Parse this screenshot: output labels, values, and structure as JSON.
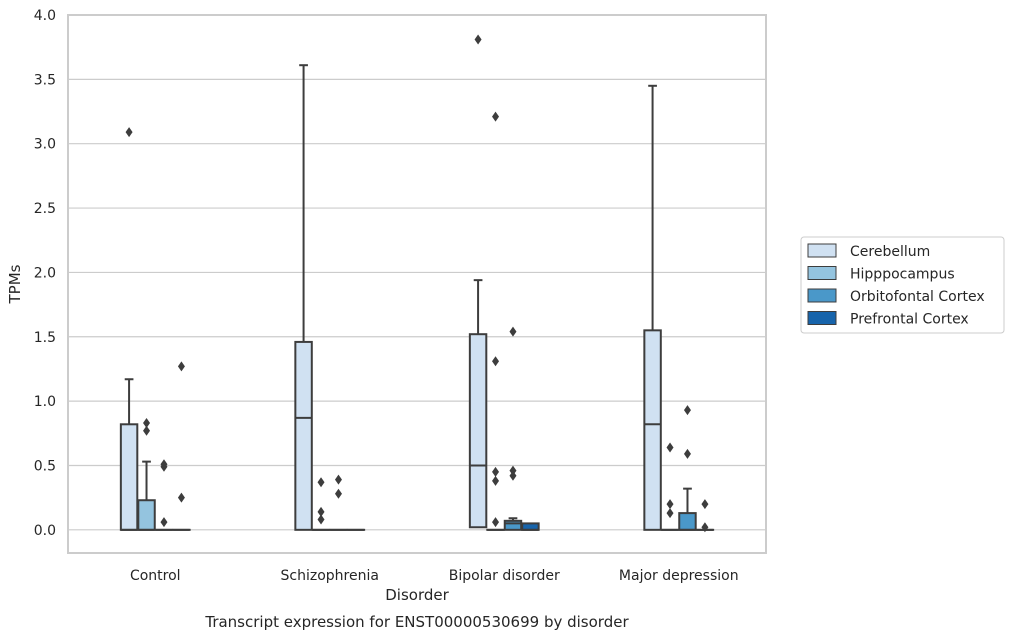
{
  "chart_data": {
    "type": "box",
    "title": "",
    "caption": "Transcript expression for ENST00000530699 by disorder",
    "xlabel": "Disorder",
    "ylabel": "TPMs",
    "ylim": [
      -0.18,
      4.0
    ],
    "yticks": [
      "0.0",
      "0.5",
      "1.0",
      "1.5",
      "2.0",
      "2.5",
      "3.0",
      "3.5",
      "4.0"
    ],
    "ytick_values": [
      0.0,
      0.5,
      1.0,
      1.5,
      2.0,
      2.5,
      3.0,
      3.5,
      4.0
    ],
    "grid": "horizontal",
    "legend_position": "right",
    "categories": [
      "Control",
      "Schizophrenia",
      "Bipolar disorder",
      "Major depression"
    ],
    "series": [
      {
        "name": "Cerebellum",
        "color": "#d0e1f2",
        "boxes": [
          {
            "q1": 0.0,
            "median": 0.0,
            "q3": 0.82,
            "whisker_low": 0.0,
            "whisker_high": 1.17,
            "outliers": [
              3.09
            ]
          },
          {
            "q1": 0.0,
            "median": 0.87,
            "q3": 1.46,
            "whisker_low": 0.0,
            "whisker_high": 3.61,
            "outliers": []
          },
          {
            "q1": 0.02,
            "median": 0.5,
            "q3": 1.52,
            "whisker_low": 0.0,
            "whisker_high": 1.94,
            "outliers": [
              3.81
            ]
          },
          {
            "q1": 0.0,
            "median": 0.82,
            "q3": 1.55,
            "whisker_low": 0.0,
            "whisker_high": 3.45,
            "outliers": []
          }
        ]
      },
      {
        "name": "Hipppocampus",
        "color": "#94c4df",
        "boxes": [
          {
            "q1": 0.0,
            "median": 0.0,
            "q3": 0.23,
            "whisker_low": 0.0,
            "whisker_high": 0.53,
            "outliers": [
              0.77,
              0.83
            ]
          },
          {
            "q1": 0.0,
            "median": 0.0,
            "q3": 0.0,
            "whisker_low": 0.0,
            "whisker_high": 0.0,
            "outliers": [
              0.08,
              0.14,
              0.37
            ]
          },
          {
            "q1": 0.0,
            "median": 0.0,
            "q3": 0.0,
            "whisker_low": 0.0,
            "whisker_high": 0.0,
            "outliers": [
              0.06,
              0.38,
              0.45,
              1.31,
              3.21
            ]
          },
          {
            "q1": 0.0,
            "median": 0.0,
            "q3": 0.0,
            "whisker_low": 0.0,
            "whisker_high": 0.0,
            "outliers": [
              0.13,
              0.2,
              0.64
            ]
          }
        ]
      },
      {
        "name": "Orbitofontal Cortex",
        "color": "#4a98c9",
        "boxes": [
          {
            "q1": 0.0,
            "median": 0.0,
            "q3": 0.0,
            "whisker_low": 0.0,
            "whisker_high": 0.0,
            "outliers": [
              0.06,
              0.49,
              0.51
            ]
          },
          {
            "q1": 0.0,
            "median": 0.0,
            "q3": 0.0,
            "whisker_low": 0.0,
            "whisker_high": 0.0,
            "outliers": [
              0.28,
              0.39
            ]
          },
          {
            "q1": 0.0,
            "median": 0.05,
            "q3": 0.07,
            "whisker_low": 0.0,
            "whisker_high": 0.09,
            "outliers": [
              0.42,
              0.46,
              1.54
            ]
          },
          {
            "q1": 0.0,
            "median": 0.0,
            "q3": 0.13,
            "whisker_low": 0.0,
            "whisker_high": 0.32,
            "outliers": [
              0.59,
              0.93
            ]
          }
        ]
      },
      {
        "name": "Prefrontal Cortex",
        "color": "#1764ab",
        "boxes": [
          {
            "q1": 0.0,
            "median": 0.0,
            "q3": 0.0,
            "whisker_low": 0.0,
            "whisker_high": 0.0,
            "outliers": [
              0.25,
              1.27
            ]
          },
          {
            "q1": 0.0,
            "median": 0.0,
            "q3": 0.0,
            "whisker_low": 0.0,
            "whisker_high": 0.0,
            "outliers": []
          },
          {
            "q1": 0.0,
            "median": 0.0,
            "q3": 0.05,
            "whisker_low": 0.0,
            "whisker_high": 0.05,
            "outliers": []
          },
          {
            "q1": 0.0,
            "median": 0.0,
            "q3": 0.0,
            "whisker_low": 0.0,
            "whisker_high": 0.0,
            "outliers": [
              0.02,
              0.2
            ]
          }
        ]
      }
    ]
  }
}
